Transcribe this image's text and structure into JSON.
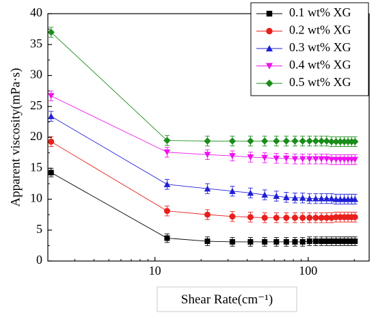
{
  "chart_data": {
    "type": "line",
    "xlabel": "Shear Rate(cm⁻¹)",
    "ylabel": "Apparent viscosity(mPa·s)",
    "xscale": "log",
    "xlim": [
      2,
      250
    ],
    "ylim": [
      0,
      40
    ],
    "xticks": [
      {
        "v": 10,
        "label": "10"
      },
      {
        "v": 100,
        "label": "100"
      }
    ],
    "yticks": [
      {
        "v": 0,
        "label": "0"
      },
      {
        "v": 5,
        "label": "5"
      },
      {
        "v": 10,
        "label": "10"
      },
      {
        "v": 15,
        "label": "15"
      },
      {
        "v": 20,
        "label": "20"
      },
      {
        "v": 25,
        "label": "25"
      },
      {
        "v": 30,
        "label": "30"
      },
      {
        "v": 35,
        "label": "35"
      },
      {
        "v": 40,
        "label": "40"
      }
    ],
    "x": [
      2.1,
      12,
      22,
      32,
      42,
      52,
      62,
      72,
      82,
      92,
      102,
      112,
      122,
      132,
      142,
      152,
      162,
      172,
      182,
      192,
      202
    ],
    "legend_position": "top-right",
    "series": [
      {
        "name": "0.1 wt% XG",
        "color": "#000000",
        "marker": "square",
        "err": 0.7,
        "values": [
          14.3,
          3.7,
          3.2,
          3.1,
          3.1,
          3.1,
          3.1,
          3.1,
          3.1,
          3.1,
          3.2,
          3.2,
          3.2,
          3.2,
          3.2,
          3.2,
          3.2,
          3.2,
          3.2,
          3.2,
          3.2
        ]
      },
      {
        "name": "0.2 wt% XG",
        "color": "#e8201c",
        "marker": "circle",
        "err": 0.8,
        "values": [
          19.3,
          8.1,
          7.5,
          7.2,
          7.1,
          7.0,
          7.0,
          7.0,
          7.0,
          7.0,
          7.0,
          7.0,
          7.0,
          7.0,
          7.0,
          7.1,
          7.1,
          7.1,
          7.1,
          7.1,
          7.1
        ]
      },
      {
        "name": "0.3 wt% XG",
        "color": "#1f1fd8",
        "marker": "triangle-up",
        "err": 0.8,
        "values": [
          23.4,
          12.4,
          11.7,
          11.3,
          11.0,
          10.7,
          10.5,
          10.3,
          10.2,
          10.2,
          10.1,
          10.1,
          10.1,
          10.1,
          10.1,
          10.0,
          10.0,
          10.0,
          10.0,
          10.0,
          10.0
        ]
      },
      {
        "name": "0.4 wt% XG",
        "color": "#ee11ee",
        "marker": "triangle-down",
        "err": 0.8,
        "values": [
          26.7,
          17.6,
          17.2,
          17.0,
          16.8,
          16.7,
          16.6,
          16.6,
          16.5,
          16.5,
          16.5,
          16.5,
          16.5,
          16.5,
          16.4,
          16.4,
          16.4,
          16.4,
          16.4,
          16.4,
          16.4
        ]
      },
      {
        "name": "0.5 wt% XG",
        "color": "#1a8c1a",
        "marker": "diamond",
        "err": 0.8,
        "values": [
          37.0,
          19.5,
          19.4,
          19.4,
          19.4,
          19.4,
          19.4,
          19.4,
          19.4,
          19.4,
          19.4,
          19.4,
          19.4,
          19.4,
          19.3,
          19.3,
          19.3,
          19.3,
          19.3,
          19.3,
          19.3
        ]
      }
    ]
  }
}
